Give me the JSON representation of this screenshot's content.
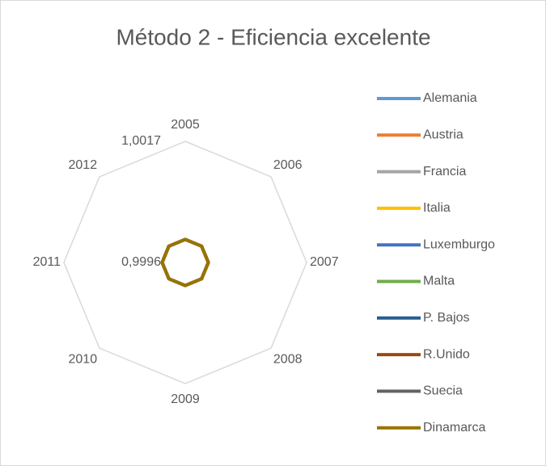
{
  "chart_data": {
    "type": "radar",
    "title": "Método 2 - Eficiencia excelente",
    "categories": [
      "2005",
      "2006",
      "2007",
      "2008",
      "2009",
      "2010",
      "2011",
      "2012"
    ],
    "rlim": [
      0.9996,
      1.0017
    ],
    "rticks": [
      {
        "value": 0.9996,
        "label": "0,9996"
      },
      {
        "value": 1.0017,
        "label": "1,0017"
      }
    ],
    "legend": "right",
    "series": [
      {
        "name": "Alemania",
        "color": "#5B9BD5",
        "values": [
          1,
          1,
          1,
          1,
          1,
          1,
          1,
          1
        ]
      },
      {
        "name": "Austria",
        "color": "#ED7D31",
        "values": [
          1,
          1,
          1,
          1,
          1,
          1,
          1,
          1
        ]
      },
      {
        "name": "Francia",
        "color": "#A5A5A5",
        "values": [
          1,
          1,
          1,
          1,
          1,
          1,
          1,
          1
        ]
      },
      {
        "name": "Italia",
        "color": "#FFC000",
        "values": [
          1,
          1,
          1,
          1,
          1,
          1,
          1,
          1
        ]
      },
      {
        "name": "Luxemburgo",
        "color": "#4472C4",
        "values": [
          1,
          1,
          1,
          1,
          1,
          1,
          1,
          1
        ]
      },
      {
        "name": "Malta",
        "color": "#70AD47",
        "values": [
          1,
          1,
          1,
          1,
          1,
          1,
          1,
          1
        ]
      },
      {
        "name": "P. Bajos",
        "color": "#255E91",
        "values": [
          1,
          1,
          1,
          1,
          1,
          1,
          1,
          1
        ]
      },
      {
        "name": "R.Unido",
        "color": "#9E480E",
        "values": [
          1,
          1,
          1,
          1,
          1,
          1,
          1,
          1
        ]
      },
      {
        "name": "Suecia",
        "color": "#636363",
        "values": [
          1,
          1,
          1,
          1,
          1,
          1,
          1,
          1
        ]
      },
      {
        "name": "Dinamarca",
        "color": "#997300",
        "values": [
          1,
          1,
          1,
          1,
          1,
          1,
          1,
          1
        ]
      }
    ]
  }
}
